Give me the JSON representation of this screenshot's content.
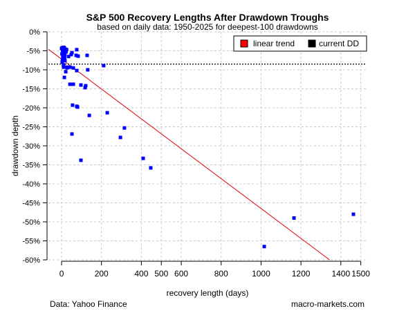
{
  "chart_data": {
    "type": "scatter",
    "title": "S&P 500 Recovery Lengths After Drawdown Troughs",
    "subtitle": "based on daily data: 1950-2025 for deepest-100 drawdowns",
    "xlabel": "recovery length (days)",
    "ylabel": "drawdown depth",
    "xlim": [
      -66,
      1529
    ],
    "ylim": [
      -60,
      0
    ],
    "x_ticks": [
      0,
      200,
      400,
      500,
      600,
      800,
      1000,
      1200,
      1400,
      1500
    ],
    "y_ticks": [
      0,
      -5,
      -10,
      -15,
      -20,
      -25,
      -30,
      -35,
      -40,
      -45,
      -50,
      -55,
      -60
    ],
    "y_tick_labels": [
      "0%",
      "-5%",
      "-10%",
      "-15%",
      "-20%",
      "-25%",
      "-30%",
      "-35%",
      "-40%",
      "-45%",
      "-50%",
      "-55%",
      "-60%"
    ],
    "grid": true,
    "legend": {
      "placement": "top-right",
      "entries": [
        {
          "label": "linear trend",
          "color": "#ff0000"
        },
        {
          "label": "current DD",
          "color": "#000000"
        }
      ]
    },
    "linear_trend": {
      "intercept": -7.2,
      "slope": -0.0393,
      "color": "#dd0000"
    },
    "current_dd": -8.5,
    "point_color": "#0000ff",
    "points": [
      [
        0,
        -4.4
      ],
      [
        3,
        -4.2
      ],
      [
        5,
        -4.8
      ],
      [
        8,
        -5.2
      ],
      [
        10,
        -4.5
      ],
      [
        12,
        -5.6
      ],
      [
        14,
        -4.3
      ],
      [
        16,
        -6.0
      ],
      [
        18,
        -5.0
      ],
      [
        20,
        -4.6
      ],
      [
        6,
        -6.5
      ],
      [
        2,
        -5.8
      ],
      [
        9,
        -7.0
      ],
      [
        4,
        -7.4
      ],
      [
        22,
        -5.3
      ],
      [
        25,
        -4.7
      ],
      [
        15,
        -6.8
      ],
      [
        11,
        -4.1
      ],
      [
        7,
        -5.0
      ],
      [
        13,
        -5.9
      ],
      [
        76,
        -4.7
      ],
      [
        73,
        -6.2
      ],
      [
        83,
        -6.4
      ],
      [
        128,
        -6.2
      ],
      [
        52,
        -5.5
      ],
      [
        48,
        -6.0
      ],
      [
        35,
        -6.5
      ],
      [
        211,
        -8.9
      ],
      [
        131,
        -10.0
      ],
      [
        76,
        -10.2
      ],
      [
        59,
        -9.5
      ],
      [
        42,
        -9.3
      ],
      [
        28,
        -9.3
      ],
      [
        10,
        -9.3
      ],
      [
        17,
        -7.6
      ],
      [
        3,
        -8.0
      ],
      [
        10,
        -8.7
      ],
      [
        21,
        -10.5
      ],
      [
        28,
        -9.5
      ],
      [
        14,
        -12.0
      ],
      [
        42,
        -13.8
      ],
      [
        59,
        -13.8
      ],
      [
        97,
        -14.0
      ],
      [
        121,
        -14.2
      ],
      [
        118,
        -14.7
      ],
      [
        55,
        -19.3
      ],
      [
        76,
        -19.6
      ],
      [
        80,
        -19.8
      ],
      [
        139,
        -22.0
      ],
      [
        229,
        -21.3
      ],
      [
        315,
        -25.3
      ],
      [
        295,
        -27.8
      ],
      [
        52,
        -26.9
      ],
      [
        97,
        -33.8
      ],
      [
        409,
        -33.3
      ],
      [
        447,
        -35.8
      ],
      [
        1016,
        -56.5
      ],
      [
        1165,
        -49.0
      ],
      [
        1463,
        -48.0
      ]
    ]
  },
  "footer": {
    "source": "Data: Yahoo Finance",
    "site": "macro-markets.com"
  }
}
